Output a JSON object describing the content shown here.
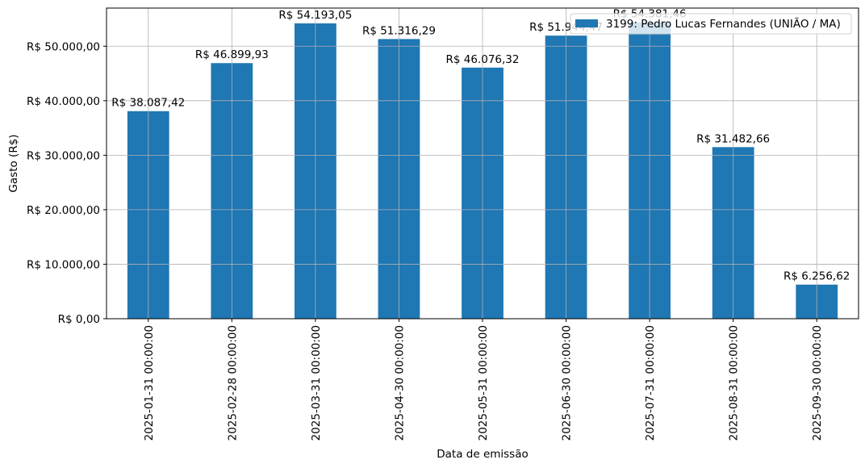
{
  "chart_data": {
    "type": "bar",
    "title": "",
    "xlabel": "Data de emissão",
    "ylabel": "Gasto (R$)",
    "categories": [
      "2025-01-31 00:00:00",
      "2025-02-28 00:00:00",
      "2025-03-31 00:00:00",
      "2025-04-30 00:00:00",
      "2025-05-31 00:00:00",
      "2025-06-30 00:00:00",
      "2025-07-31 00:00:00",
      "2025-08-31 00:00:00",
      "2025-09-30 00:00:00"
    ],
    "series": [
      {
        "name": "3199: Pedro Lucas Fernandes (UNIÃO / MA)",
        "color": "#1f77b4",
        "values": [
          38087.42,
          46899.93,
          54193.05,
          51316.29,
          46076.32,
          51944.47,
          54381.46,
          31482.66,
          6256.62
        ]
      }
    ],
    "data_labels": [
      "R$ 38.087,42",
      "R$ 46.899,93",
      "R$ 54.193,05",
      "R$ 51.316,29",
      "R$ 46.076,32",
      "R$ 51.944,47",
      "R$ 54.381,46",
      "R$ 31.482,66",
      "R$ 6.256,62"
    ],
    "yticks": [
      0,
      10000,
      20000,
      30000,
      40000,
      50000
    ],
    "ytick_labels": [
      "R$ 0,00",
      "R$ 10.000,00",
      "R$ 20.000,00",
      "R$ 30.000,00",
      "R$ 40.000,00",
      "R$ 50.000,00"
    ],
    "ylim": [
      0,
      57000
    ],
    "grid": true,
    "legend_position": "top-right"
  }
}
